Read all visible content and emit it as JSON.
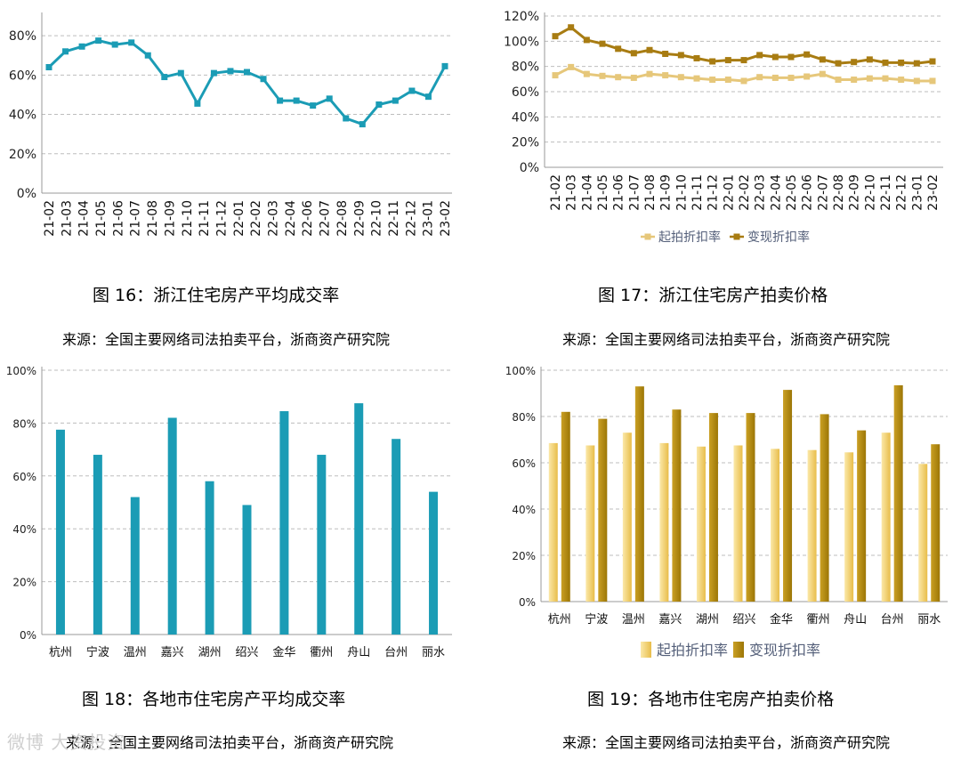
{
  "chart_data": [
    {
      "type": "line",
      "title": "图 16：浙江住宅房产平均成交率",
      "source": "来源：全国主要网络司法拍卖平台，浙商资产研究院",
      "x": [
        "21-02",
        "21-03",
        "21-04",
        "21-05",
        "21-06",
        "21-07",
        "21-08",
        "21-09",
        "21-10",
        "21-11",
        "21-12",
        "22-01",
        "22-02",
        "22-03",
        "22-04",
        "22-05",
        "22-06",
        "22-07",
        "22-08",
        "22-09",
        "22-10",
        "22-11",
        "22-12",
        "23-01",
        "23-02"
      ],
      "x_tick_labels": [
        "21-02",
        "21-03",
        "21-04",
        "21-05",
        "21-06",
        "21-07",
        "21-08",
        "21-09",
        "21-10",
        "21-11",
        "21-12",
        "22-01",
        "22-02",
        "22-03",
        "22-04",
        "22-06",
        "22-07",
        "22-08",
        "22-09",
        "22-10",
        "22-11",
        "22-12",
        "23-01",
        "23-02"
      ],
      "series": [
        {
          "name": "平均成交率",
          "color": "#1b9cb5",
          "values": [
            64,
            72,
            74.5,
            77.5,
            75.5,
            76.5,
            70,
            59,
            61,
            45.5,
            61,
            62,
            61.5,
            58,
            47,
            47,
            44.5,
            48,
            38,
            35,
            45,
            47,
            52,
            49,
            64.5
          ]
        }
      ],
      "y_ticks": [
        "0%",
        "20%",
        "40%",
        "60%",
        "80%"
      ],
      "ylim": [
        0,
        90
      ],
      "legend": false
    },
    {
      "type": "line",
      "title": "图 17：浙江住宅房产拍卖价格",
      "source": "来源：全国主要网络司法拍卖平台，浙商资产研究院",
      "x": [
        "21-02",
        "21-03",
        "21-04",
        "21-05",
        "21-06",
        "21-07",
        "21-08",
        "21-09",
        "21-10",
        "21-11",
        "21-12",
        "22-01",
        "22-02",
        "22-03",
        "22-04",
        "22-05",
        "22-06",
        "22-07",
        "22-08",
        "22-09",
        "22-10",
        "22-11",
        "22-12",
        "23-01",
        "23-02"
      ],
      "series": [
        {
          "name": "起拍折扣率",
          "color": "#e6c77a",
          "values": [
            73,
            79.5,
            74,
            72.5,
            71.5,
            71,
            74,
            73,
            71.5,
            70.5,
            69.5,
            69.5,
            68.5,
            71.5,
            71,
            71,
            72,
            74,
            69.5,
            69.5,
            70.5,
            70.5,
            69.5,
            68.5,
            68.5
          ]
        },
        {
          "name": "变现折扣率",
          "color": "#a87c12",
          "values": [
            104,
            111,
            101,
            98,
            94,
            90.5,
            93,
            90,
            89,
            86.5,
            84,
            85,
            85,
            89,
            87.5,
            87.5,
            89.5,
            85.5,
            82.5,
            83.5,
            85.5,
            83,
            83,
            82.5,
            84
          ]
        }
      ],
      "y_ticks": [
        "0%",
        "20%",
        "40%",
        "60%",
        "80%",
        "100%",
        "120%"
      ],
      "ylim": [
        0,
        120
      ],
      "legend": "bottom"
    },
    {
      "type": "bar",
      "title": "图 18：各地市住宅房产平均成交率",
      "source": "来源：全国主要网络司法拍卖平台，浙商资产研究院",
      "categories": [
        "杭州",
        "宁波",
        "温州",
        "嘉兴",
        "湖州",
        "绍兴",
        "金华",
        "衢州",
        "舟山",
        "台州",
        "丽水"
      ],
      "series": [
        {
          "name": "平均成交率",
          "color": "#1b9cb5",
          "values": [
            77.5,
            68,
            52,
            82,
            58,
            49,
            84.5,
            68,
            87.5,
            74,
            54
          ]
        }
      ],
      "y_ticks": [
        "0%",
        "20%",
        "40%",
        "60%",
        "80%",
        "100%"
      ],
      "ylim": [
        0,
        100
      ],
      "legend": false
    },
    {
      "type": "bar",
      "title": "图 19：各地市住宅房产拍卖价格",
      "source": "来源：全国主要网络司法拍卖平台，浙商资产研究院",
      "categories": [
        "杭州",
        "宁波",
        "温州",
        "嘉兴",
        "湖州",
        "绍兴",
        "金华",
        "衢州",
        "舟山",
        "台州",
        "丽水"
      ],
      "series": [
        {
          "name": "起拍折扣率",
          "color": "#f0cf72",
          "values": [
            68.5,
            67.5,
            73,
            68.5,
            67,
            67.5,
            66,
            65.5,
            64.5,
            73,
            59.5
          ]
        },
        {
          "name": "变现折扣率",
          "color": "#b8900f",
          "values": [
            82,
            79,
            93,
            83,
            81.5,
            81.5,
            91.5,
            81,
            74,
            93.5,
            68
          ]
        }
      ],
      "y_ticks": [
        "0%",
        "20%",
        "40%",
        "60%",
        "80%",
        "100%"
      ],
      "ylim": [
        0,
        100
      ],
      "legend": "bottom"
    }
  ],
  "watermark": "微博 大资投资"
}
